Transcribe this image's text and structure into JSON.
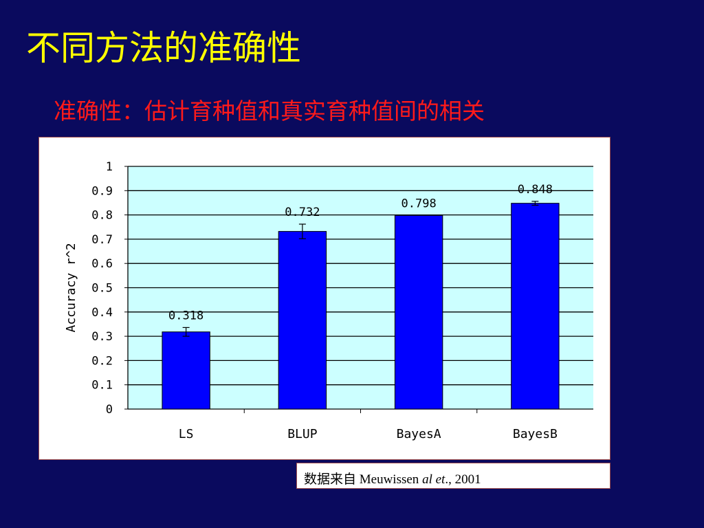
{
  "slide": {
    "title": "不同方法的准确性",
    "subtitle": "准确性：估计育种值和真实育种值间的相关"
  },
  "source": {
    "prefix": "数据来自 Meuwissen ",
    "italic": "al et",
    "suffix": "., 2001"
  },
  "colors": {
    "background": "#0a0a5e",
    "title": "#ffff00",
    "subtitle": "#ff1a1a",
    "plot_area": "#ccffff",
    "bar": "#0000ff"
  },
  "chart_data": {
    "type": "bar",
    "categories": [
      "LS",
      "BLUP",
      "BayesA",
      "BayesB"
    ],
    "values": [
      0.318,
      0.732,
      0.798,
      0.848
    ],
    "error": [
      0.018,
      0.03,
      0.0,
      0.008
    ],
    "data_labels": [
      "0.318",
      "0.732",
      "0.798",
      "0.848"
    ],
    "ylabel": "Accuracy r^2",
    "xlabel": "",
    "ylim": [
      0,
      1
    ],
    "yticks": [
      0,
      0.1,
      0.2,
      0.3,
      0.4,
      0.5,
      0.6,
      0.7,
      0.8,
      0.9,
      1
    ],
    "ytick_labels": [
      "0",
      "0.1",
      "0.2",
      "0.3",
      "0.4",
      "0.5",
      "0.6",
      "0.7",
      "0.8",
      "0.9",
      "1"
    ],
    "grid": true,
    "legend": "none"
  }
}
